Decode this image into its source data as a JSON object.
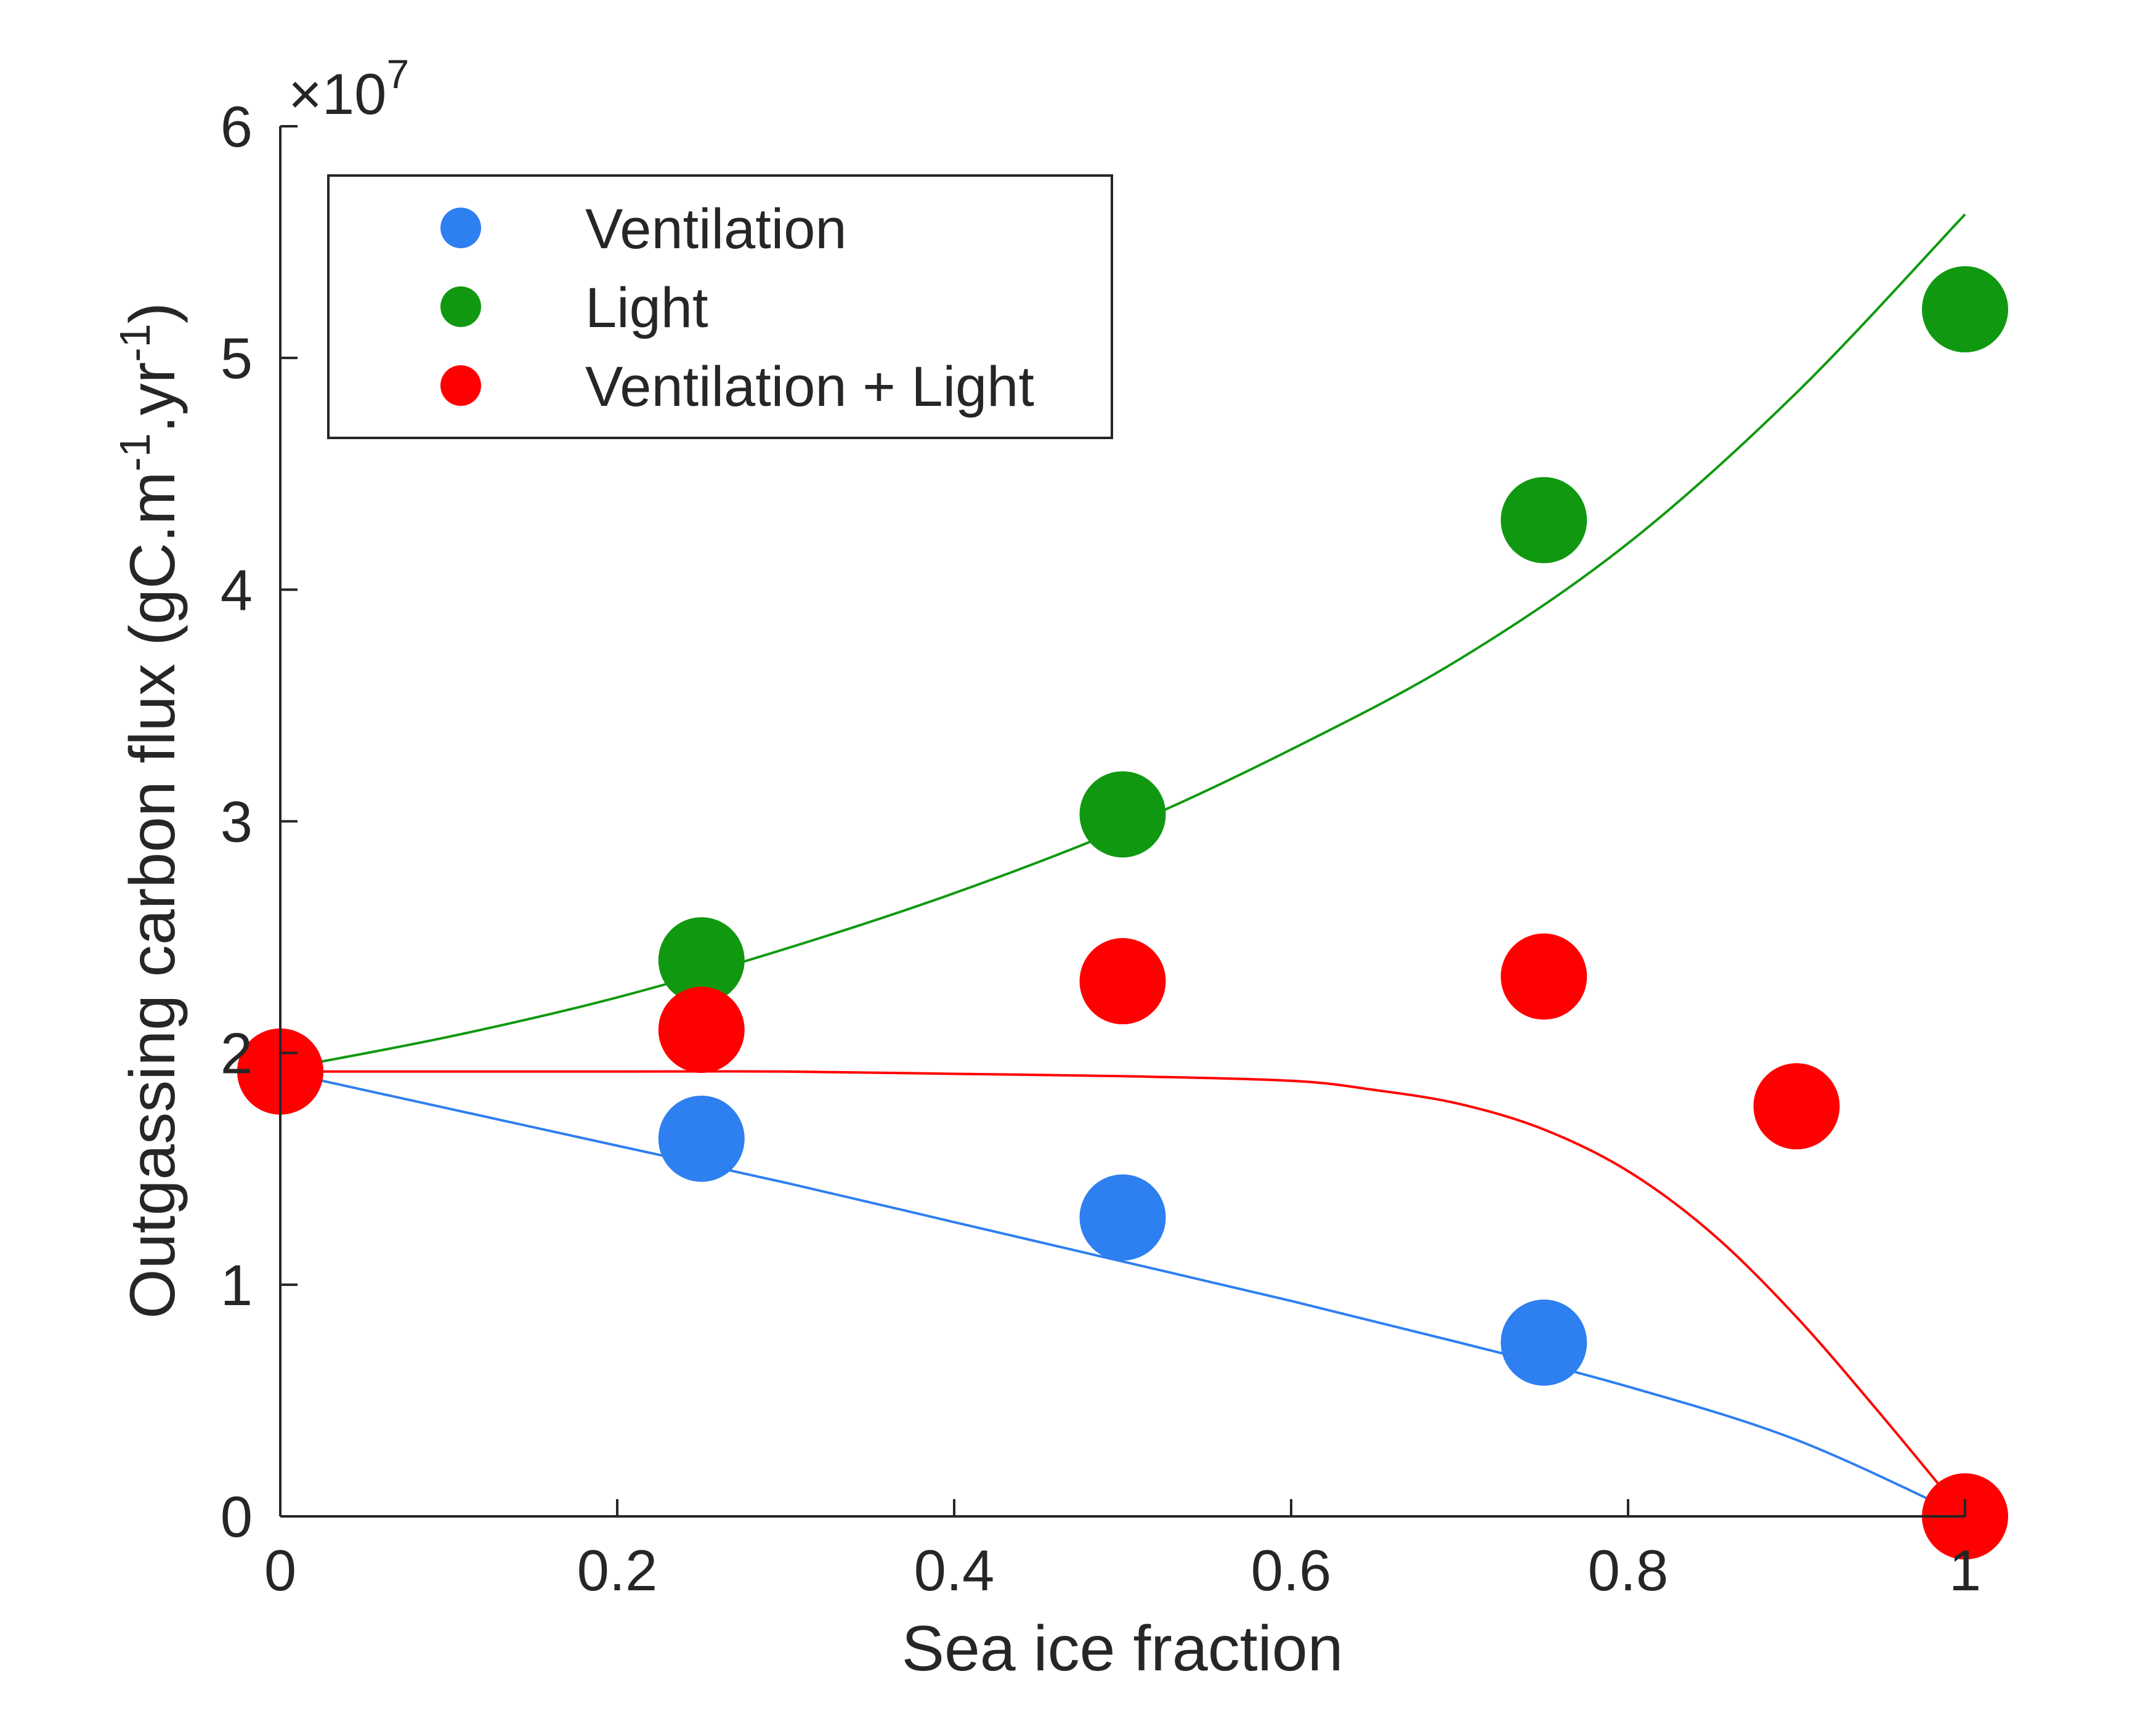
{
  "chart_data": {
    "type": "scatter",
    "xlabel": "Sea ice fraction",
    "ylabel_main": "Outgassing carbon flux (gC.m",
    "ylabel_sup1": "-1",
    "ylabel_mid": ".yr",
    "ylabel_sup2": "-1",
    "ylabel_end": ")",
    "xlim": [
      0,
      1
    ],
    "ylim": [
      0,
      6
    ],
    "y_multiplier_base": "×10",
    "y_multiplier_exponent": "7",
    "x_ticks": [
      0,
      0.2,
      0.4,
      0.6,
      0.8,
      1
    ],
    "x_tick_labels": [
      "0",
      "0.2",
      "0.4",
      "0.6",
      "0.8",
      "1"
    ],
    "y_ticks": [
      0,
      1,
      2,
      3,
      4,
      5,
      6
    ],
    "y_tick_labels": [
      "0",
      "1",
      "2",
      "3",
      "4",
      "5",
      "6"
    ],
    "grid": false,
    "legend_position": "top-left",
    "series": [
      {
        "name": "Ventilation",
        "color": "#2e7ff0",
        "points": [
          [
            0,
            1.92
          ],
          [
            0.25,
            1.63
          ],
          [
            0.5,
            1.29
          ],
          [
            0.75,
            0.75
          ]
        ],
        "fit": [
          [
            0,
            1.92
          ],
          [
            0.1,
            1.76
          ],
          [
            0.2,
            1.6
          ],
          [
            0.3,
            1.44
          ],
          [
            0.4,
            1.27
          ],
          [
            0.5,
            1.1
          ],
          [
            0.6,
            0.93
          ],
          [
            0.7,
            0.75
          ],
          [
            0.8,
            0.56
          ],
          [
            0.9,
            0.33
          ],
          [
            1.0,
            0.0
          ]
        ]
      },
      {
        "name": "Light",
        "color": "#109910",
        "points": [
          [
            0.25,
            2.4
          ],
          [
            0.5,
            3.03
          ],
          [
            0.75,
            4.3
          ],
          [
            1.0,
            5.21
          ]
        ],
        "fit": [
          [
            0,
            1.93
          ],
          [
            0.1,
            2.07
          ],
          [
            0.2,
            2.24
          ],
          [
            0.3,
            2.45
          ],
          [
            0.4,
            2.69
          ],
          [
            0.5,
            2.97
          ],
          [
            0.6,
            3.31
          ],
          [
            0.7,
            3.7
          ],
          [
            0.8,
            4.2
          ],
          [
            0.9,
            4.85
          ],
          [
            1.0,
            5.62
          ]
        ]
      },
      {
        "name": "Ventilation + Light",
        "color": "#ff0000",
        "points": [
          [
            0,
            1.92
          ],
          [
            0.25,
            2.1
          ],
          [
            0.5,
            2.31
          ],
          [
            0.75,
            2.33
          ],
          [
            0.9,
            1.77
          ],
          [
            1.0,
            0.0
          ]
        ],
        "fit": [
          [
            0,
            1.92
          ],
          [
            0.1,
            1.92
          ],
          [
            0.2,
            1.92
          ],
          [
            0.3,
            1.92
          ],
          [
            0.4,
            1.91
          ],
          [
            0.5,
            1.9
          ],
          [
            0.6,
            1.88
          ],
          [
            0.65,
            1.84
          ],
          [
            0.7,
            1.78
          ],
          [
            0.75,
            1.67
          ],
          [
            0.8,
            1.49
          ],
          [
            0.85,
            1.22
          ],
          [
            0.9,
            0.86
          ],
          [
            0.95,
            0.44
          ],
          [
            1.0,
            0.0
          ]
        ]
      }
    ]
  }
}
